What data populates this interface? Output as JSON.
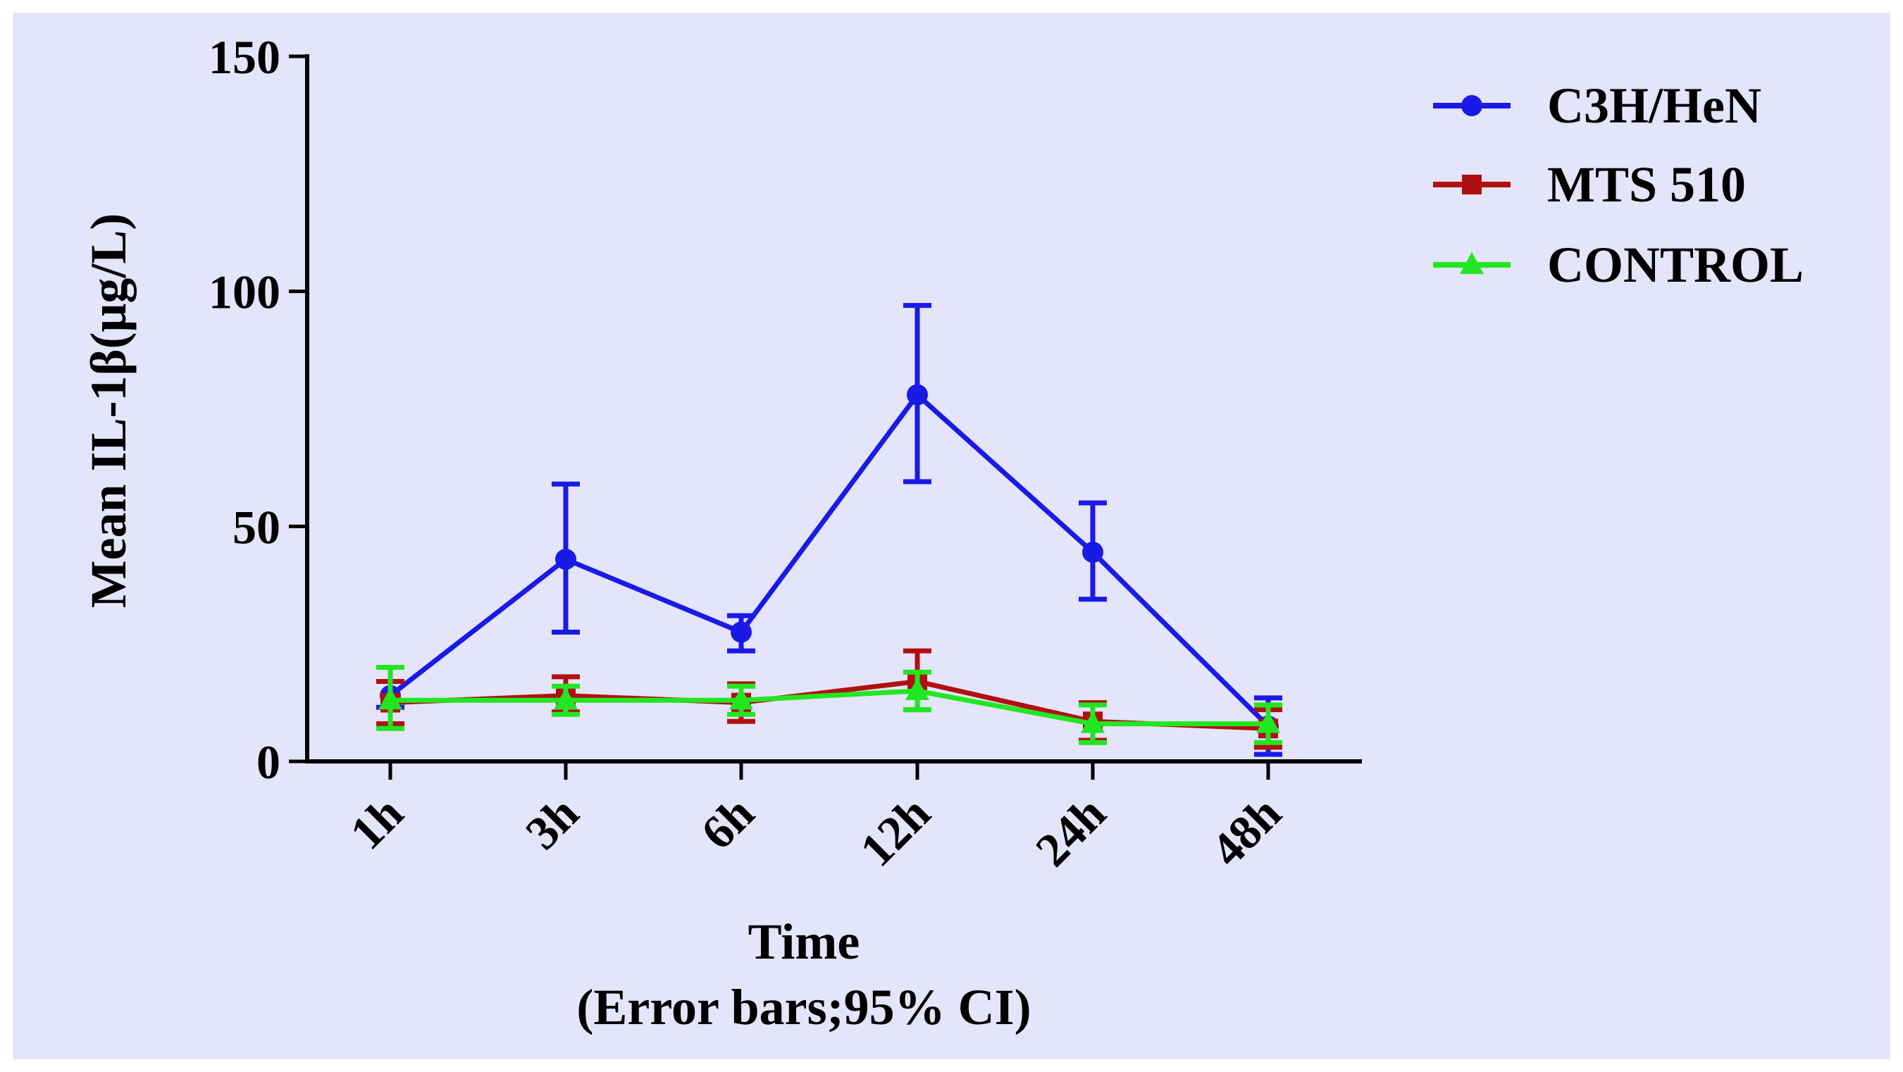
{
  "chart_data": {
    "type": "line",
    "categories": [
      "1h",
      "3h",
      "6h",
      "12h",
      "24h",
      "48h"
    ],
    "ylabel": "Mean IL-1β(μg/L)",
    "xlabel": "Time",
    "xlabel_note": "(Error bars;95% CI)",
    "ylim": [
      0,
      150
    ],
    "yticks": [
      0,
      50,
      100,
      150
    ],
    "grid": false,
    "legend_position": "top-right",
    "series": [
      {
        "name": "C3H/HeN",
        "color": "#1a1ae6",
        "marker": "circle",
        "values": [
          14,
          43,
          27.5,
          78,
          44.5,
          7.5
        ],
        "ci_low": [
          11.5,
          27.5,
          23.5,
          59.5,
          34.5,
          1.5
        ],
        "ci_high": [
          17,
          59,
          31,
          97,
          55,
          13.5
        ]
      },
      {
        "name": "MTS 510",
        "color": "#b01010",
        "marker": "square",
        "values": [
          12.5,
          14,
          12.5,
          17,
          8.5,
          7
        ],
        "ci_low": [
          8,
          10.5,
          8.5,
          11,
          4.5,
          3
        ],
        "ci_high": [
          17,
          18,
          16.5,
          23.5,
          12.5,
          11
        ]
      },
      {
        "name": "CONTROL",
        "color": "#22e622",
        "marker": "triangle",
        "values": [
          13,
          13,
          13,
          15,
          8,
          8
        ],
        "ci_low": [
          7,
          10,
          10,
          11,
          4,
          4
        ],
        "ci_high": [
          20,
          16,
          16,
          19,
          12,
          12
        ]
      }
    ]
  }
}
